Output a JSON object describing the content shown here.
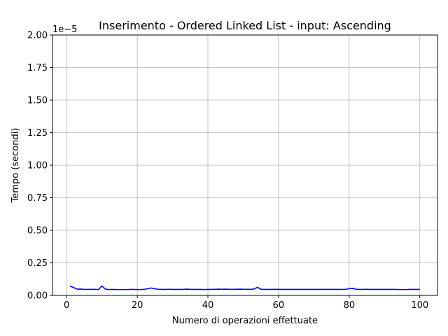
{
  "chart_data": {
    "type": "line",
    "title": "Inserimento - Ordered Linked List - input: Ascending",
    "xlabel": "Numero di operazioni effettuate",
    "ylabel": "Tempo (secondi)",
    "y_offset_label": "1e−5",
    "xlim": [
      -4,
      105
    ],
    "ylim": [
      0,
      2.0
    ],
    "x_ticks": [
      0,
      20,
      40,
      60,
      80,
      100
    ],
    "x_tick_labels": [
      "0",
      "20",
      "40",
      "60",
      "80",
      "100"
    ],
    "y_ticks": [
      0,
      0.25,
      0.5,
      0.75,
      1.0,
      1.25,
      1.5,
      1.75,
      2.0
    ],
    "y_tick_labels": [
      "0.00",
      "0.25",
      "0.50",
      "0.75",
      "1.00",
      "1.25",
      "1.50",
      "1.75",
      "2.00"
    ],
    "grid": true,
    "line_color": "#0000ff",
    "series": [
      {
        "x_start": 1,
        "x_step": 1,
        "values": [
          0.072,
          0.06,
          0.048,
          0.049,
          0.047,
          0.046,
          0.046,
          0.047,
          0.045,
          0.072,
          0.048,
          0.045,
          0.046,
          0.045,
          0.045,
          0.045,
          0.045,
          0.046,
          0.046,
          0.045,
          0.045,
          0.047,
          0.051,
          0.057,
          0.05,
          0.047,
          0.046,
          0.046,
          0.047,
          0.046,
          0.046,
          0.046,
          0.046,
          0.048,
          0.046,
          0.046,
          0.046,
          0.046,
          0.045,
          0.046,
          0.046,
          0.047,
          0.048,
          0.047,
          0.048,
          0.047,
          0.047,
          0.047,
          0.048,
          0.047,
          0.047,
          0.047,
          0.048,
          0.062,
          0.047,
          0.046,
          0.046,
          0.046,
          0.047,
          0.046,
          0.046,
          0.046,
          0.046,
          0.046,
          0.046,
          0.046,
          0.046,
          0.046,
          0.046,
          0.046,
          0.046,
          0.046,
          0.046,
          0.047,
          0.046,
          0.046,
          0.046,
          0.046,
          0.047,
          0.051,
          0.054,
          0.047,
          0.046,
          0.046,
          0.047,
          0.046,
          0.046,
          0.046,
          0.046,
          0.046,
          0.046,
          0.046,
          0.046,
          0.045,
          0.045,
          0.045,
          0.046,
          0.046,
          0.046,
          0.046
        ]
      }
    ]
  }
}
